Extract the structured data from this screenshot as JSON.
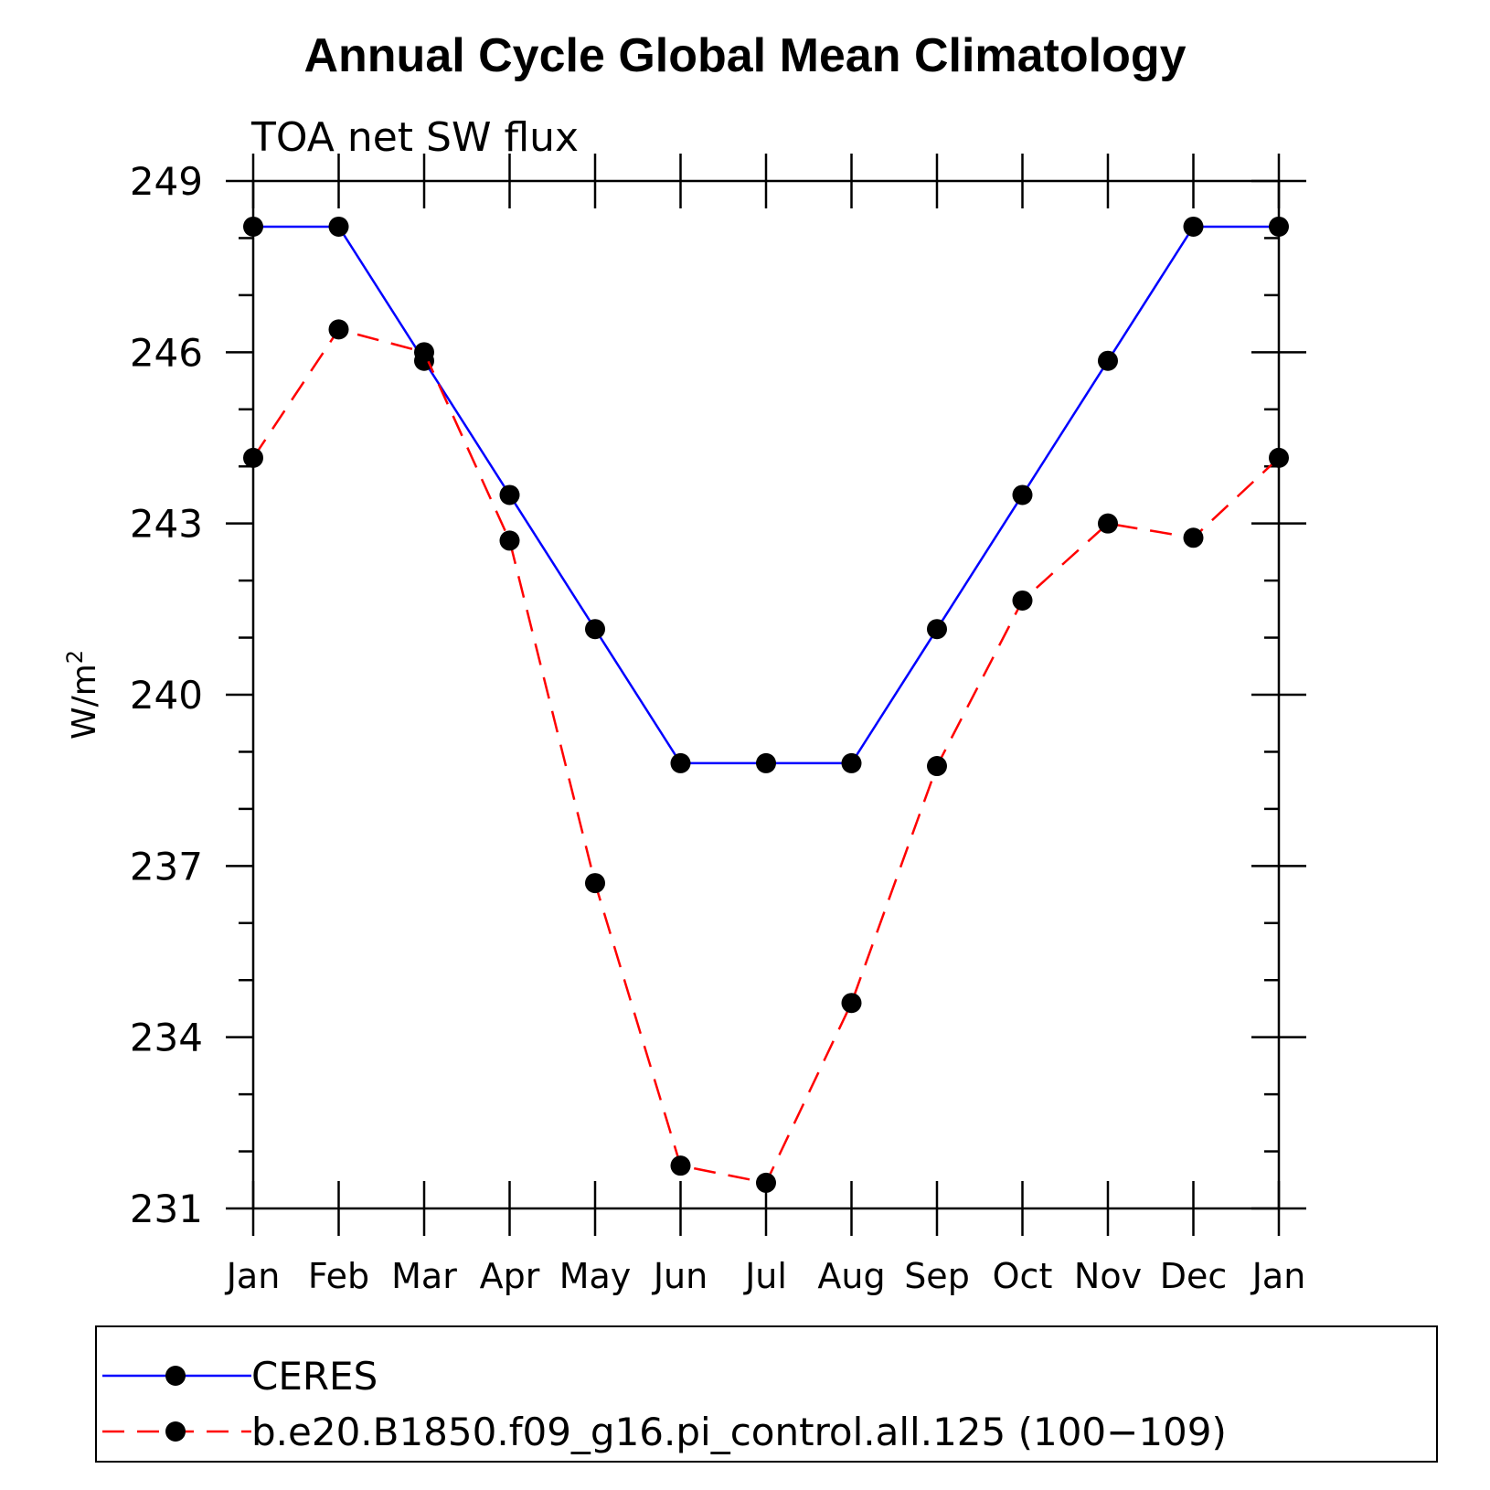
{
  "chart_data": {
    "type": "line",
    "title": "Annual Cycle Global Mean Climatology",
    "subtitle": "TOA net SW flux",
    "xlabel": "",
    "ylabel": "W/m",
    "ylabel_superscript": "2",
    "categories": [
      "Jan",
      "Feb",
      "Mar",
      "Apr",
      "May",
      "Jun",
      "Jul",
      "Aug",
      "Sep",
      "Oct",
      "Nov",
      "Dec",
      "Jan"
    ],
    "ylim": [
      231,
      249
    ],
    "yticks": [
      "231",
      "234",
      "237",
      "240",
      "243",
      "246",
      "249"
    ],
    "series": [
      {
        "name": "CERES",
        "color": "#0000ff",
        "dash": "solid",
        "values": [
          248.2,
          248.2,
          245.85,
          243.5,
          241.15,
          238.8,
          238.8,
          238.8,
          241.15,
          243.5,
          245.85,
          248.2,
          248.2
        ]
      },
      {
        "name": "b.e20.B1850.f09_g16.pi_control.all.125 (100−109)",
        "color": "#ff0000",
        "dash": "dashed",
        "values: ": null,
        "values": [
          244.15,
          246.4,
          246.0,
          242.7,
          236.7,
          231.75,
          231.45,
          234.6,
          238.75,
          241.65,
          243.0,
          242.75,
          244.15
        ]
      }
    ],
    "legend": "bottom"
  }
}
